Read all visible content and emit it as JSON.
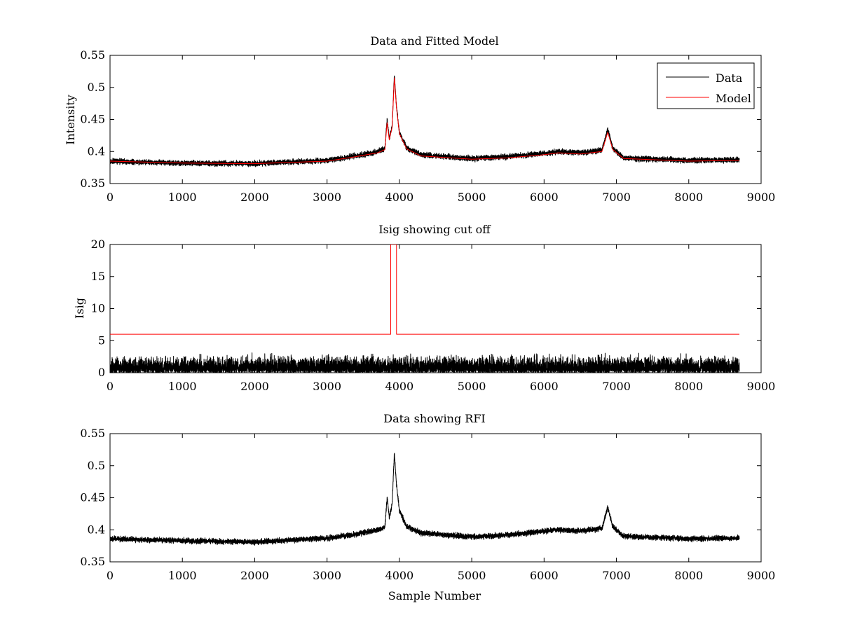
{
  "chart_data": [
    {
      "type": "line",
      "title": "Data and Fitted Model",
      "xlabel": "",
      "ylabel": "Intensity",
      "xlim": [
        0,
        9000
      ],
      "ylim": [
        0.35,
        0.55
      ],
      "x_ticks": [
        "0",
        "1000",
        "2000",
        "3000",
        "4000",
        "5000",
        "6000",
        "7000",
        "8000",
        "9000"
      ],
      "y_ticks": [
        "0.35",
        "0.4",
        "0.45",
        "0.5",
        "0.55"
      ],
      "legend": {
        "position": "top-right",
        "entries": [
          "Data",
          "Model"
        ]
      },
      "series": [
        {
          "name": "Data",
          "color": "#000000",
          "n_samples": 8700,
          "noise_amplitude": 0.004,
          "baseline_points": [
            [
              0,
              0.385
            ],
            [
              1000,
              0.382
            ],
            [
              2000,
              0.381
            ],
            [
              3000,
              0.386
            ],
            [
              3400,
              0.393
            ],
            [
              3700,
              0.4
            ],
            [
              3800,
              0.405
            ],
            [
              3830,
              0.45
            ],
            [
              3860,
              0.42
            ],
            [
              3900,
              0.44
            ],
            [
              3930,
              0.52
            ],
            [
              3960,
              0.47
            ],
            [
              4000,
              0.43
            ],
            [
              4100,
              0.405
            ],
            [
              4300,
              0.395
            ],
            [
              5000,
              0.389
            ],
            [
              5500,
              0.392
            ],
            [
              6000,
              0.397
            ],
            [
              6200,
              0.4
            ],
            [
              6500,
              0.398
            ],
            [
              6800,
              0.402
            ],
            [
              6880,
              0.435
            ],
            [
              6950,
              0.405
            ],
            [
              7100,
              0.39
            ],
            [
              8000,
              0.386
            ],
            [
              8700,
              0.387
            ]
          ]
        },
        {
          "name": "Model",
          "color": "#ff0000",
          "points": [
            [
              0,
              0.385
            ],
            [
              1000,
              0.382
            ],
            [
              2000,
              0.381
            ],
            [
              3000,
              0.385
            ],
            [
              3400,
              0.392
            ],
            [
              3700,
              0.398
            ],
            [
              3800,
              0.403
            ],
            [
              3830,
              0.445
            ],
            [
              3860,
              0.418
            ],
            [
              3900,
              0.438
            ],
            [
              3930,
              0.515
            ],
            [
              3960,
              0.468
            ],
            [
              4000,
              0.428
            ],
            [
              4100,
              0.404
            ],
            [
              4300,
              0.393
            ],
            [
              5000,
              0.388
            ],
            [
              5500,
              0.39
            ],
            [
              6000,
              0.395
            ],
            [
              6200,
              0.398
            ],
            [
              6500,
              0.396
            ],
            [
              6800,
              0.4
            ],
            [
              6880,
              0.43
            ],
            [
              6950,
              0.403
            ],
            [
              7100,
              0.389
            ],
            [
              8000,
              0.385
            ],
            [
              8700,
              0.386
            ]
          ]
        }
      ]
    },
    {
      "type": "line",
      "title": "Isig showing cut off",
      "xlabel": "",
      "ylabel": "Isig",
      "xlim": [
        0,
        9000
      ],
      "ylim": [
        0,
        20
      ],
      "x_ticks": [
        "0",
        "1000",
        "2000",
        "3000",
        "4000",
        "5000",
        "6000",
        "7000",
        "8000",
        "9000"
      ],
      "y_ticks": [
        "0",
        "5",
        "10",
        "15",
        "20"
      ],
      "series": [
        {
          "color": "#000000",
          "n_samples": 8700,
          "noise_amplitude": 3.9,
          "baseline_points": [
            [
              0,
              0
            ],
            [
              8700,
              0
            ]
          ]
        },
        {
          "color": "#ff0000",
          "points": [
            [
              0,
              6
            ],
            [
              3880,
              6
            ],
            [
              3880,
              20
            ],
            [
              3960,
              20
            ],
            [
              3960,
              6
            ],
            [
              8700,
              6
            ]
          ]
        }
      ]
    },
    {
      "type": "line",
      "title": "Data showing RFI",
      "xlabel": "Sample Number",
      "ylabel": "",
      "xlim": [
        0,
        9000
      ],
      "ylim": [
        0.35,
        0.55
      ],
      "x_ticks": [
        "0",
        "1000",
        "2000",
        "3000",
        "4000",
        "5000",
        "6000",
        "7000",
        "8000",
        "9000"
      ],
      "y_ticks": [
        "0.35",
        "0.4",
        "0.45",
        "0.5",
        "0.55"
      ],
      "series": [
        {
          "color": "#000000",
          "n_samples": 8700,
          "noise_amplitude": 0.004,
          "baseline_points": [
            [
              0,
              0.386
            ],
            [
              1000,
              0.383
            ],
            [
              2000,
              0.381
            ],
            [
              3000,
              0.387
            ],
            [
              3400,
              0.393
            ],
            [
              3700,
              0.4
            ],
            [
              3800,
              0.405
            ],
            [
              3830,
              0.45
            ],
            [
              3860,
              0.42
            ],
            [
              3900,
              0.44
            ],
            [
              3930,
              0.52
            ],
            [
              3960,
              0.47
            ],
            [
              4000,
              0.43
            ],
            [
              4100,
              0.405
            ],
            [
              4300,
              0.395
            ],
            [
              5000,
              0.389
            ],
            [
              5500,
              0.392
            ],
            [
              6000,
              0.398
            ],
            [
              6200,
              0.4
            ],
            [
              6500,
              0.398
            ],
            [
              6800,
              0.402
            ],
            [
              6880,
              0.435
            ],
            [
              6950,
              0.405
            ],
            [
              7100,
              0.39
            ],
            [
              8000,
              0.386
            ],
            [
              8700,
              0.387
            ]
          ]
        }
      ]
    }
  ]
}
